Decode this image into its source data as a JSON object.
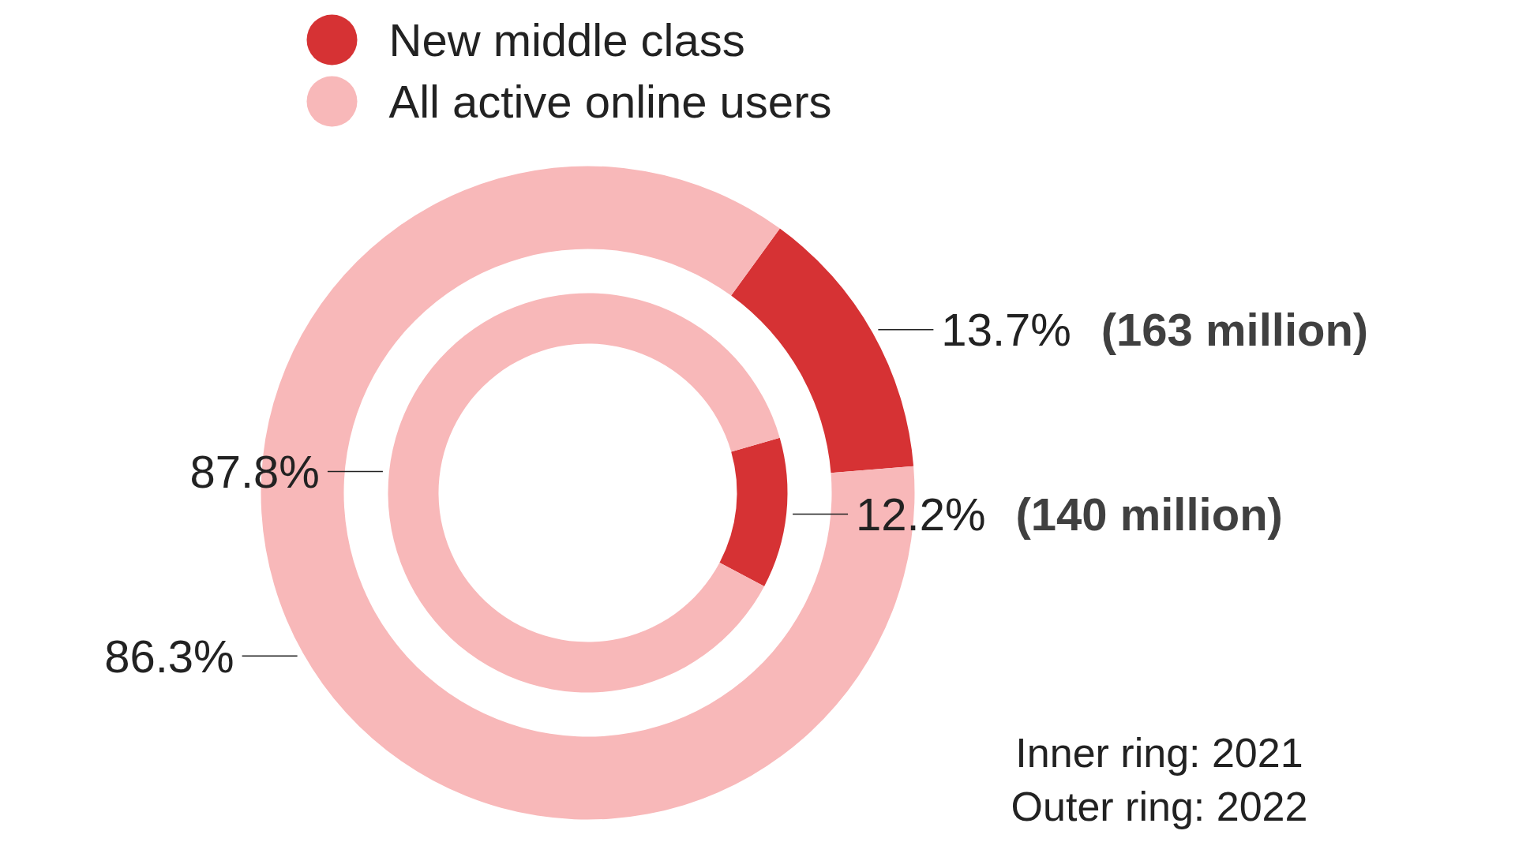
{
  "chart_data": {
    "type": "donut",
    "categories": [
      "New middle class",
      "All active online users"
    ],
    "colors": [
      "#d63234",
      "#f8b8b9"
    ],
    "series": [
      {
        "values": [
          13.7,
          86.3
        ],
        "value_labels": [
          "13.7%",
          "86.3%"
        ]
      },
      {
        "values": [
          12.2,
          87.8
        ],
        "value_labels": [
          "12.2%",
          "87.8%"
        ]
      }
    ],
    "legend": "top left",
    "annotations": [
      "(163 million)",
      "(140 million)",
      "Inner ring: 2021",
      "Outer ring: 2022"
    ]
  }
}
